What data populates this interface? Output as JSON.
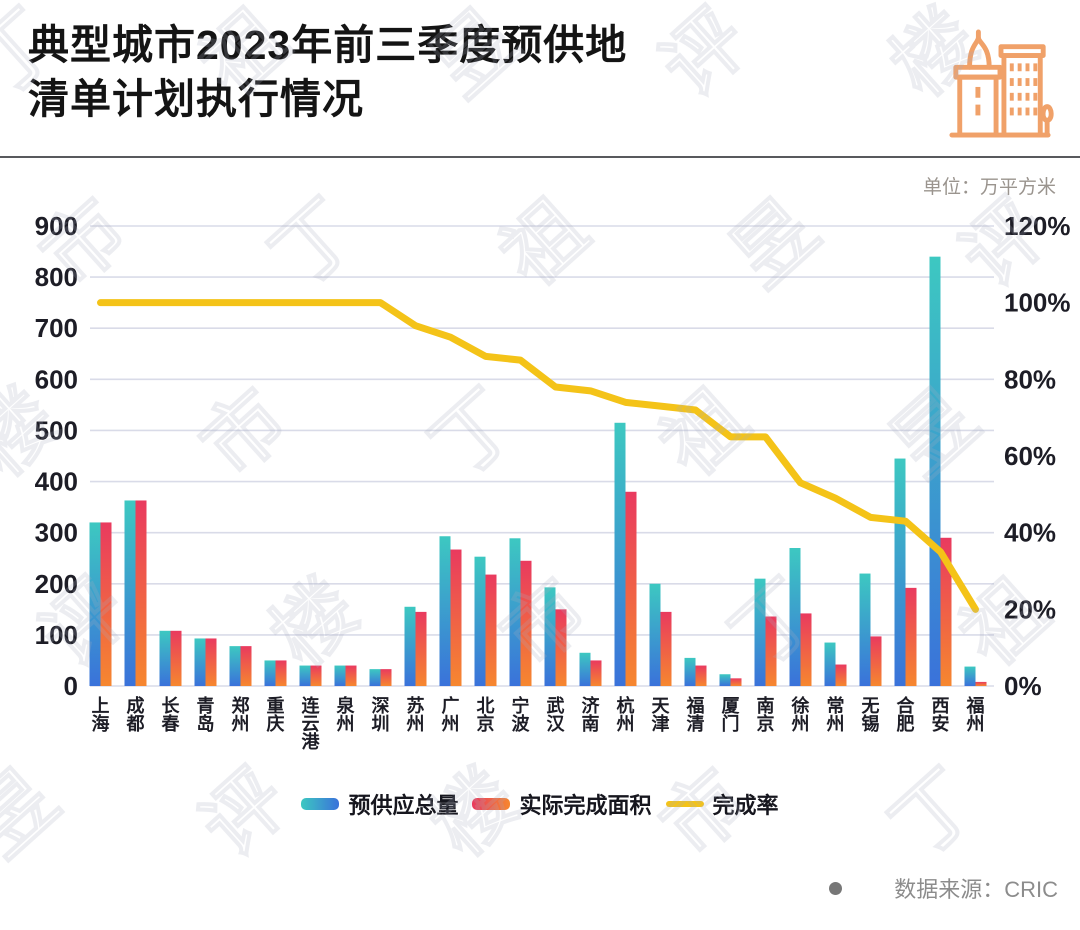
{
  "header": {
    "title_line1": "典型城市2023年前三季度预供地",
    "title_line2": "清单计划执行情况",
    "unit_label": "单位：万平方米"
  },
  "source": {
    "text": "数据来源：CRIC"
  },
  "watermark": {
    "text": "丁祖昱评楼市"
  },
  "colors": {
    "title_text": "#141414",
    "axis_text": "#1d1d26",
    "gridline": "#d9dbe8",
    "divider": "#58595d",
    "unit_text": "#9a948e",
    "source_text": "#8c8c8c",
    "icon_orange": "#f0a169",
    "supply_top": "#3dc8c1",
    "supply_bottom": "#3a72da",
    "completed_top": "#e93a5f",
    "completed_bottom": "#f6872f",
    "rate_line": "#f4c318"
  },
  "chart_data": {
    "type": "bar",
    "title": "典型城市2023年前三季度预供地清单计划执行情况",
    "unit": "万平方米",
    "grid": true,
    "legend_position": "bottom",
    "categories": [
      "上海",
      "成都",
      "长春",
      "青岛",
      "郑州",
      "重庆",
      "连云港",
      "泉州",
      "深圳",
      "苏州",
      "广州",
      "北京",
      "宁波",
      "武汉",
      "济南",
      "杭州",
      "天津",
      "福清",
      "厦门",
      "南京",
      "徐州",
      "常州",
      "无锡",
      "合肥",
      "西安",
      "福州"
    ],
    "left_axis": {
      "min": 0,
      "max": 900,
      "step": 100,
      "label": "万平方米"
    },
    "right_axis": {
      "min": 0,
      "max": 120,
      "step": 20,
      "suffix": "%"
    },
    "series": [
      {
        "name": "预供应总量",
        "type": "bar",
        "axis": "left",
        "color_top": "#3dc8c1",
        "color_bottom": "#3a72da",
        "values": [
          320,
          363,
          108,
          93,
          78,
          50,
          40,
          40,
          33,
          155,
          293,
          253,
          289,
          193,
          65,
          515,
          200,
          55,
          23,
          210,
          270,
          85,
          220,
          445,
          840,
          38
        ]
      },
      {
        "name": "实际完成面积",
        "type": "bar",
        "axis": "left",
        "color_top": "#e93a5f",
        "color_bottom": "#f6872f",
        "values": [
          320,
          363,
          108,
          93,
          78,
          50,
          40,
          40,
          33,
          145,
          267,
          218,
          245,
          150,
          50,
          380,
          145,
          40,
          15,
          136,
          142,
          42,
          97,
          192,
          290,
          8
        ]
      },
      {
        "name": "完成率",
        "type": "line",
        "axis": "right",
        "color": "#f4c318",
        "values": [
          100,
          100,
          100,
          100,
          100,
          100,
          100,
          100,
          100,
          94,
          91,
          86,
          85,
          78,
          77,
          74,
          73,
          72,
          65,
          65,
          53,
          49,
          44,
          43,
          35,
          20
        ]
      }
    ]
  }
}
